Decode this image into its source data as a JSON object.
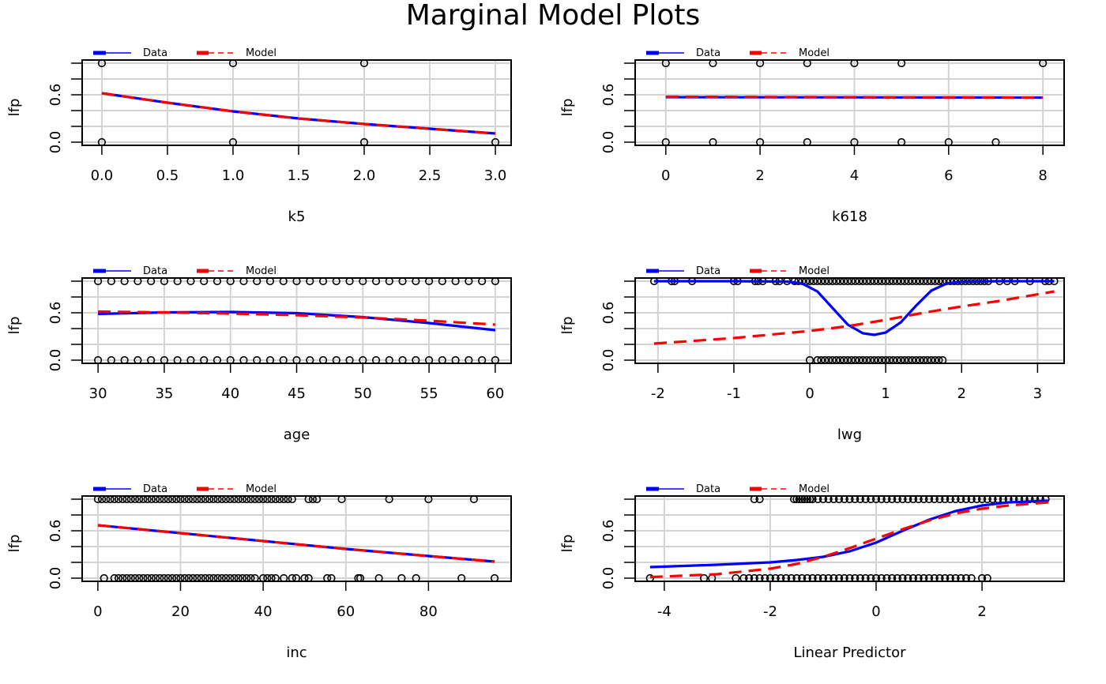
{
  "title": "Marginal Model Plots",
  "legend": {
    "data_label": "Data",
    "model_label": "Model"
  },
  "colors": {
    "data": "#0000ff",
    "model": "#ff0000",
    "grid": "#d3d3d3",
    "points": "#000000"
  },
  "chart_data": [
    {
      "type": "scatter",
      "xlabel": "k5",
      "ylabel": "lfp",
      "xlim": [
        -0.15,
        3.12
      ],
      "ylim": [
        -0.04,
        1.04
      ],
      "xticks": [
        0.0,
        0.5,
        1.0,
        1.5,
        2.0,
        2.5,
        3.0
      ],
      "xtick_labels": [
        "0.0",
        "0.5",
        "1.0",
        "1.5",
        "2.0",
        "2.5",
        "3.0"
      ],
      "yticks": [
        0.0,
        0.2,
        0.4,
        0.6,
        0.8,
        1.0
      ],
      "ytick_labels": [
        "0.0",
        "",
        "",
        "0.6",
        "",
        ""
      ],
      "grid": true,
      "legend_position": "top-left",
      "points": {
        "x1": [
          0,
          1,
          2
        ],
        "x0": [
          0,
          1,
          2,
          3
        ]
      },
      "series": [
        {
          "name": "Data",
          "x": [
            0,
            0.5,
            1,
            1.5,
            2,
            2.5,
            3
          ],
          "y": [
            0.62,
            0.5,
            0.39,
            0.3,
            0.23,
            0.17,
            0.11
          ]
        },
        {
          "name": "Model",
          "x": [
            0,
            0.5,
            1,
            1.5,
            2,
            2.5,
            3
          ],
          "y": [
            0.62,
            0.5,
            0.39,
            0.3,
            0.23,
            0.17,
            0.11
          ]
        }
      ]
    },
    {
      "type": "scatter",
      "xlabel": "k618",
      "ylabel": "lfp",
      "xlim": [
        -0.65,
        8.45
      ],
      "ylim": [
        -0.04,
        1.04
      ],
      "xticks": [
        0,
        2,
        4,
        6,
        8
      ],
      "xtick_labels": [
        "0",
        "2",
        "4",
        "6",
        "8"
      ],
      "yticks": [
        0.0,
        0.2,
        0.4,
        0.6,
        0.8,
        1.0
      ],
      "ytick_labels": [
        "0.0",
        "",
        "",
        "0.6",
        "",
        ""
      ],
      "grid": true,
      "legend_position": "top-left",
      "points": {
        "x1": [
          0,
          1,
          2,
          3,
          4,
          5,
          8
        ],
        "x0": [
          0,
          1,
          2,
          3,
          4,
          5,
          6,
          7
        ]
      },
      "series": [
        {
          "name": "Data",
          "x": [
            0,
            8
          ],
          "y": [
            0.57,
            0.565
          ]
        },
        {
          "name": "Model",
          "x": [
            0,
            8
          ],
          "y": [
            0.575,
            0.565
          ]
        }
      ]
    },
    {
      "type": "scatter",
      "xlabel": "age",
      "ylabel": "lfp",
      "xlim": [
        28.8,
        61.2
      ],
      "ylim": [
        -0.04,
        1.04
      ],
      "xticks": [
        30,
        35,
        40,
        45,
        50,
        55,
        60
      ],
      "xtick_labels": [
        "30",
        "35",
        "40",
        "45",
        "50",
        "55",
        "60"
      ],
      "yticks": [
        0.0,
        0.2,
        0.4,
        0.6,
        0.8,
        1.0
      ],
      "ytick_labels": [
        "0.0",
        "",
        "",
        "0.6",
        "",
        ""
      ],
      "grid": true,
      "legend_position": "top-left",
      "points": {
        "x1": [
          30,
          31,
          32,
          33,
          34,
          35,
          36,
          37,
          38,
          39,
          40,
          41,
          42,
          43,
          44,
          45,
          46,
          47,
          48,
          49,
          50,
          51,
          52,
          53,
          54,
          55,
          56,
          57,
          58,
          59,
          60
        ],
        "x0": [
          30,
          31,
          32,
          33,
          34,
          35,
          36,
          37,
          38,
          39,
          40,
          41,
          42,
          43,
          44,
          45,
          46,
          47,
          48,
          49,
          50,
          51,
          52,
          53,
          54,
          55,
          56,
          57,
          58,
          59,
          60
        ]
      },
      "series": [
        {
          "name": "Data",
          "x": [
            30,
            35,
            40,
            45,
            50,
            55,
            60
          ],
          "y": [
            0.585,
            0.605,
            0.61,
            0.595,
            0.545,
            0.47,
            0.38
          ]
        },
        {
          "name": "Model",
          "x": [
            30,
            35,
            40,
            45,
            50,
            55,
            60
          ],
          "y": [
            0.615,
            0.605,
            0.59,
            0.57,
            0.54,
            0.5,
            0.45
          ]
        }
      ]
    },
    {
      "type": "scatter",
      "xlabel": "lwg",
      "ylabel": "lfp",
      "xlim": [
        -2.3,
        3.35
      ],
      "ylim": [
        -0.04,
        1.04
      ],
      "xticks": [
        -2,
        -1,
        0,
        1,
        2,
        3
      ],
      "xtick_labels": [
        "-2",
        "-1",
        "0",
        "1",
        "2",
        "3"
      ],
      "yticks": [
        0.0,
        0.2,
        0.4,
        0.6,
        0.8,
        1.0
      ],
      "ytick_labels": [
        "0.0",
        "",
        "",
        "0.6",
        "",
        ""
      ],
      "grid": true,
      "legend_position": "top-left",
      "points": {
        "x1": [
          -2.05,
          -1.82,
          -1.78,
          -1.55,
          -1.0,
          -0.95,
          -0.72,
          -0.68,
          -0.62,
          -0.45,
          -0.4,
          -0.3,
          -0.2,
          -0.15,
          -0.1,
          -0.05,
          0.0,
          0.05,
          0.1,
          0.15,
          0.2,
          0.25,
          0.3,
          0.35,
          0.4,
          0.45,
          0.5,
          0.55,
          0.6,
          0.65,
          0.7,
          0.75,
          0.8,
          0.85,
          0.9,
          0.95,
          1.0,
          1.05,
          1.1,
          1.15,
          1.2,
          1.25,
          1.3,
          1.35,
          1.4,
          1.45,
          1.5,
          1.55,
          1.6,
          1.65,
          1.7,
          1.75,
          1.8,
          1.85,
          1.9,
          1.95,
          2.0,
          2.05,
          2.1,
          2.15,
          2.2,
          2.25,
          2.3,
          2.35,
          2.5,
          2.6,
          2.7,
          2.9,
          3.1,
          3.15,
          3.22
        ],
        "x0": [
          0.0,
          0.1,
          0.15,
          0.2,
          0.25,
          0.3,
          0.35,
          0.4,
          0.45,
          0.5,
          0.55,
          0.6,
          0.65,
          0.7,
          0.75,
          0.8,
          0.85,
          0.9,
          0.95,
          1.0,
          1.05,
          1.1,
          1.15,
          1.2,
          1.25,
          1.3,
          1.35,
          1.4,
          1.45,
          1.5,
          1.55,
          1.6,
          1.65,
          1.7,
          1.75
        ]
      },
      "series": [
        {
          "name": "Data",
          "x": [
            -2.05,
            -1.0,
            -0.3,
            -0.1,
            0.1,
            0.3,
            0.5,
            0.7,
            0.85,
            1.0,
            1.2,
            1.4,
            1.6,
            1.8,
            2.0,
            2.5,
            3.22
          ],
          "y": [
            1.0,
            1.0,
            0.995,
            0.97,
            0.87,
            0.66,
            0.45,
            0.34,
            0.32,
            0.35,
            0.48,
            0.69,
            0.88,
            0.97,
            0.995,
            1.0,
            1.0
          ]
        },
        {
          "name": "Model",
          "x": [
            -2.05,
            -1.0,
            0.0,
            0.5,
            1.0,
            1.5,
            2.0,
            2.5,
            3.22
          ],
          "y": [
            0.21,
            0.28,
            0.37,
            0.43,
            0.51,
            0.6,
            0.68,
            0.75,
            0.87
          ]
        }
      ]
    },
    {
      "type": "scatter",
      "xlabel": "inc",
      "ylabel": "lfp",
      "xlim": [
        -3.8,
        100
      ],
      "ylim": [
        -0.04,
        1.04
      ],
      "xticks": [
        0,
        20,
        40,
        60,
        80
      ],
      "xtick_labels": [
        "0",
        "20",
        "40",
        "60",
        "80"
      ],
      "yticks": [
        0.0,
        0.2,
        0.4,
        0.6,
        0.8,
        1.0
      ],
      "ytick_labels": [
        "0.0",
        "",
        "",
        "0.6",
        "",
        ""
      ],
      "grid": true,
      "legend_position": "top-left",
      "points": {
        "x1": [
          0,
          1,
          2,
          3,
          4,
          5,
          6,
          7,
          8,
          9,
          10,
          11,
          12,
          13,
          14,
          15,
          16,
          17,
          18,
          19,
          20,
          21,
          22,
          23,
          24,
          25,
          26,
          27,
          28,
          29,
          30,
          31,
          32,
          33,
          34,
          35,
          36,
          37,
          38,
          39,
          40,
          41,
          42,
          43,
          44,
          45,
          46,
          47,
          51,
          52,
          53,
          59,
          70.5,
          80,
          91
        ],
        "x0": [
          1.5,
          4,
          5,
          6,
          7,
          8,
          9,
          10,
          11,
          12,
          13,
          14,
          15,
          16,
          17,
          18,
          19,
          20,
          21,
          22,
          23,
          24,
          25,
          26,
          27,
          28,
          29,
          30,
          31,
          32,
          33,
          34,
          35,
          36,
          37,
          38,
          40,
          41,
          42,
          43,
          45,
          47,
          48,
          50,
          51,
          55.5,
          56.5,
          63,
          63.5,
          68,
          73.5,
          77,
          88,
          96
        ]
      },
      "series": [
        {
          "name": "Data",
          "x": [
            0,
            20,
            40,
            60,
            80,
            96
          ],
          "y": [
            0.67,
            0.57,
            0.47,
            0.37,
            0.28,
            0.21
          ]
        },
        {
          "name": "Model",
          "x": [
            0,
            20,
            40,
            60,
            80,
            96
          ],
          "y": [
            0.67,
            0.57,
            0.47,
            0.37,
            0.28,
            0.21
          ]
        }
      ]
    },
    {
      "type": "scatter",
      "xlabel": "Linear Predictor",
      "ylabel": "lfp",
      "xlim": [
        -4.55,
        3.55
      ],
      "ylim": [
        -0.04,
        1.04
      ],
      "xticks": [
        -4,
        -2,
        0,
        2
      ],
      "xtick_labels": [
        "-4",
        "-2",
        "0",
        "2"
      ],
      "yticks": [
        0.0,
        0.2,
        0.4,
        0.6,
        0.8,
        1.0
      ],
      "ytick_labels": [
        "0.0",
        "",
        "",
        "0.6",
        "",
        ""
      ],
      "grid": true,
      "legend_position": "top-left",
      "points": {
        "x1": [
          -2.3,
          -2.2,
          -1.55,
          -1.5,
          -1.45,
          -1.4,
          -1.35,
          -1.3,
          -1.25,
          -1.2,
          -1.1,
          -1.0,
          -0.9,
          -0.8,
          -0.7,
          -0.6,
          -0.5,
          -0.4,
          -0.3,
          -0.2,
          -0.1,
          0.0,
          0.1,
          0.2,
          0.3,
          0.4,
          0.5,
          0.6,
          0.7,
          0.8,
          0.9,
          1.0,
          1.1,
          1.2,
          1.3,
          1.4,
          1.5,
          1.6,
          1.7,
          1.8,
          1.9,
          2.0,
          2.1,
          2.2,
          2.3,
          2.4,
          2.5,
          2.6,
          2.7,
          2.8,
          2.9,
          3.0,
          3.1,
          3.2
        ],
        "x0": [
          -4.27,
          -3.25,
          -3.1,
          -2.65,
          -2.5,
          -2.4,
          -2.3,
          -2.2,
          -2.1,
          -2.0,
          -1.9,
          -1.8,
          -1.7,
          -1.6,
          -1.5,
          -1.4,
          -1.3,
          -1.2,
          -1.1,
          -1.0,
          -0.9,
          -0.8,
          -0.7,
          -0.6,
          -0.5,
          -0.4,
          -0.3,
          -0.2,
          -0.1,
          0.0,
          0.1,
          0.2,
          0.3,
          0.4,
          0.5,
          0.6,
          0.7,
          0.8,
          0.9,
          1.0,
          1.1,
          1.2,
          1.3,
          1.4,
          1.5,
          1.6,
          1.7,
          1.8,
          2.0,
          2.1
        ]
      },
      "series": [
        {
          "name": "Data",
          "x": [
            -4.27,
            -3,
            -2,
            -1.5,
            -1,
            -0.5,
            0,
            0.5,
            1,
            1.5,
            2,
            2.5,
            3.25
          ],
          "y": [
            0.14,
            0.17,
            0.2,
            0.23,
            0.27,
            0.34,
            0.45,
            0.6,
            0.74,
            0.85,
            0.92,
            0.96,
            0.98
          ]
        },
        {
          "name": "Model",
          "x": [
            -4.27,
            -3,
            -2,
            -1.5,
            -1,
            -0.5,
            0,
            0.5,
            1,
            1.5,
            2,
            2.5,
            3.25
          ],
          "y": [
            0.014,
            0.05,
            0.12,
            0.18,
            0.27,
            0.38,
            0.5,
            0.62,
            0.73,
            0.82,
            0.88,
            0.92,
            0.96
          ]
        }
      ]
    }
  ]
}
